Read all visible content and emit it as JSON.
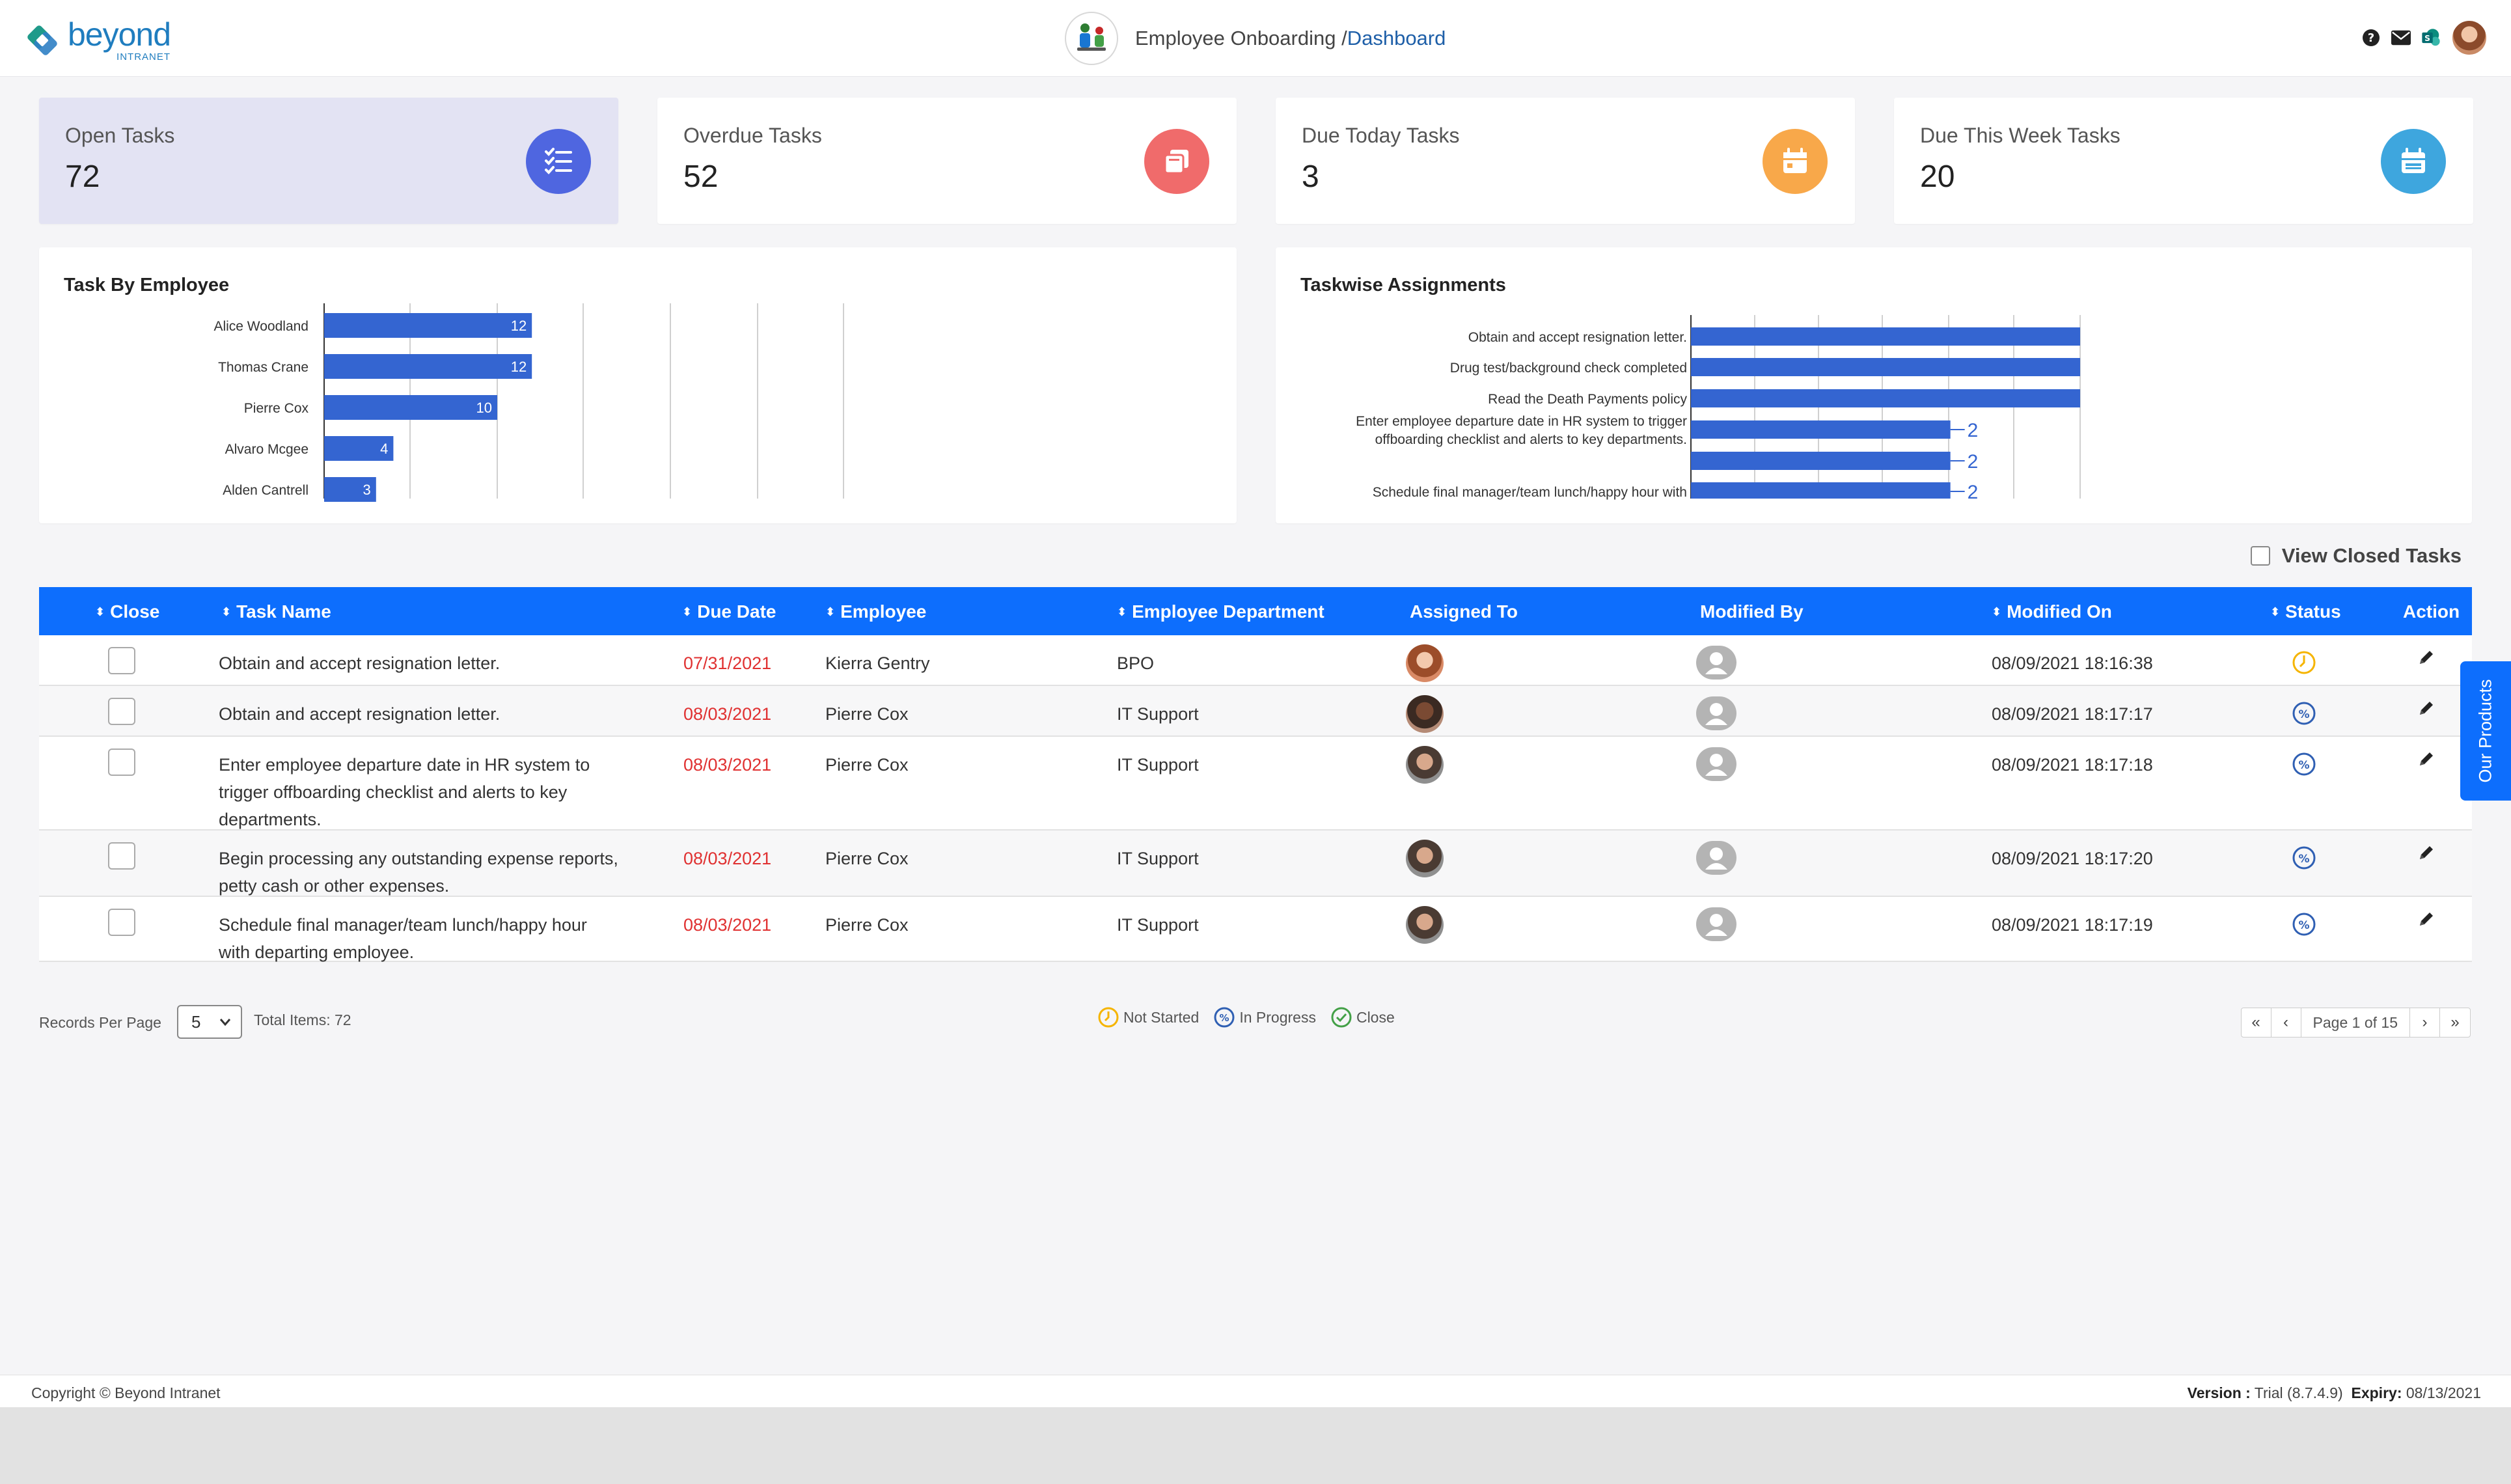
{
  "header": {
    "logo_main": "beyond",
    "logo_sub": "INTRANET",
    "app_name": "Employee Onboarding /",
    "breadcrumb": "Dashboard"
  },
  "stats": [
    {
      "label": "Open Tasks",
      "value": "72",
      "color": "#4f66e0",
      "icon": "checklist-icon"
    },
    {
      "label": "Overdue Tasks",
      "value": "52",
      "color": "#f06b6b",
      "icon": "copy-icon"
    },
    {
      "label": "Due Today Tasks",
      "value": "3",
      "color": "#f8a84a",
      "icon": "calendar-icon"
    },
    {
      "label": "Due This Week Tasks",
      "value": "20",
      "color": "#3ea6de",
      "icon": "calendar-week-icon"
    }
  ],
  "charts": {
    "employee_title": "Task By Employee",
    "taskwise_title": "Taskwise Assignments"
  },
  "chart_data": [
    {
      "type": "bar",
      "orientation": "horizontal",
      "title": "Task By Employee",
      "categories": [
        "Alice Woodland",
        "Thomas Crane",
        "Pierre Cox",
        "Alvaro Mcgee",
        "Alden Cantrell"
      ],
      "values": [
        12,
        12,
        10,
        4,
        3
      ],
      "xlim": [
        0,
        30
      ],
      "grid": true,
      "color": "#3465d1"
    },
    {
      "type": "bar",
      "orientation": "horizontal",
      "title": "Taskwise Assignments",
      "categories": [
        "Obtain and accept resignation letter.",
        "Drug test/background check completed",
        "Read the Death Payments policy",
        "Enter employee departure date in HR system to trigger offboarding checklist and alerts to key departments.",
        "",
        "Schedule final manager/team lunch/happy hour with"
      ],
      "label_lines": [
        [
          "Obtain and accept resignation letter."
        ],
        [
          "Drug test/background check completed"
        ],
        [
          "Read the Death Payments policy"
        ],
        [
          "Enter employee departure date in HR system to trigger",
          "offboarding checklist and alerts to key departments."
        ],
        [],
        [
          "Schedule final manager/team lunch/happy hour with"
        ]
      ],
      "values": [
        3,
        3,
        3,
        2,
        2,
        2
      ],
      "data_labels": [
        "",
        "",
        "",
        "2",
        "2",
        "2"
      ],
      "xlim": [
        0,
        3
      ],
      "grid": true,
      "color": "#3465d1"
    }
  ],
  "table": {
    "view_closed_label": "View Closed Tasks",
    "headers": {
      "close": "Close",
      "task_name": "Task Name",
      "due_date": "Due Date",
      "employee": "Employee",
      "department": "Employee Department",
      "assigned_to": "Assigned To",
      "modified_by": "Modified By",
      "modified_on": "Modified On",
      "status": "Status",
      "action": "Action"
    },
    "rows": [
      {
        "task_lines": [
          "Obtain and accept resignation letter."
        ],
        "due": "07/31/2021",
        "employee": "Kierra Gentry",
        "department": "BPO",
        "modified_on": "08/09/2021 18:16:38",
        "status": "Not Started",
        "avatar": "female"
      },
      {
        "task_lines": [
          "Obtain and accept resignation letter."
        ],
        "due": "08/03/2021",
        "employee": "Pierre Cox",
        "department": "IT Support",
        "modified_on": "08/09/2021 18:17:17",
        "status": "In Progress",
        "avatar": "male-dark"
      },
      {
        "task_lines": [
          "Enter employee departure date in HR system to",
          "trigger offboarding checklist and alerts to key",
          "departments."
        ],
        "due": "08/03/2021",
        "employee": "Pierre Cox",
        "department": "IT Support",
        "modified_on": "08/09/2021 18:17:18",
        "status": "In Progress",
        "avatar": "male"
      },
      {
        "task_lines": [
          "Begin processing any outstanding expense reports,",
          "petty cash or other expenses."
        ],
        "due": "08/03/2021",
        "employee": "Pierre Cox",
        "department": "IT Support",
        "modified_on": "08/09/2021 18:17:20",
        "status": "In Progress",
        "avatar": "male"
      },
      {
        "task_lines": [
          "Schedule final manager/team lunch/happy hour",
          "with departing employee."
        ],
        "due": "08/03/2021",
        "employee": "Pierre Cox",
        "department": "IT Support",
        "modified_on": "08/09/2021 18:17:19",
        "status": "In Progress",
        "avatar": "male"
      }
    ]
  },
  "pagination": {
    "records_per_page_label": "Records Per Page",
    "records_per_page_value": "5",
    "total_items": "Total Items: 72",
    "page_label": "Page 1 of 15"
  },
  "legend": {
    "not_started": "Not Started",
    "in_progress": "In Progress",
    "close": "Close"
  },
  "side_tab": "Our Products",
  "footer": {
    "copyright": "Copyright © Beyond Intranet",
    "version_label": "Version :",
    "version_value": "Trial (8.7.4.9)",
    "expiry_label": "Expiry:",
    "expiry_value": "08/13/2021"
  },
  "colors": {
    "primary": "#0d6efd",
    "bar": "#3465d1",
    "overdue": "#e03131",
    "not_started": "#f5b400",
    "in_progress": "#2f5fb3",
    "close": "#43a047"
  }
}
